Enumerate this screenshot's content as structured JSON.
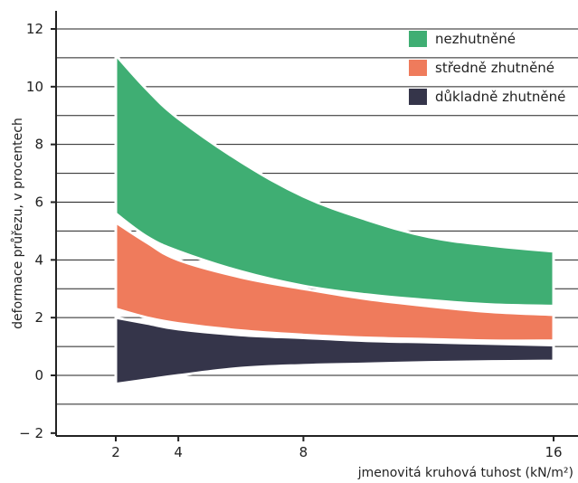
{
  "chart_data": {
    "type": "area",
    "xlabel": "jmenovitá kruhová tuhost (kN/m²)",
    "ylabel": "deformace průřezu, v procentech",
    "xlim": [
      0,
      17
    ],
    "ylim": [
      -2,
      12.5
    ],
    "x_ticks": [
      2,
      4,
      8,
      16
    ],
    "y_ticks": [
      -2,
      0,
      2,
      4,
      6,
      8,
      10,
      12
    ],
    "y_tick_labels": [
      "− 2",
      "0",
      "2",
      "4",
      "6",
      "8",
      "10",
      "12"
    ],
    "grid": "horizontal",
    "legend_position": "top-right",
    "series": [
      {
        "name": "nezhutněné",
        "color": "#3fae73",
        "x": [
          2,
          3,
          4,
          6,
          8,
          10,
          12,
          14,
          16
        ],
        "upper": [
          11.1,
          9.9,
          8.9,
          7.4,
          6.2,
          5.4,
          4.8,
          4.5,
          4.3
        ],
        "lower": [
          5.6,
          4.8,
          4.3,
          3.6,
          3.1,
          2.8,
          2.6,
          2.45,
          2.4
        ]
      },
      {
        "name": "středně zhutněné",
        "color": "#ef7b5c",
        "x": [
          2,
          3,
          4,
          6,
          8,
          10,
          12,
          14,
          16
        ],
        "upper": [
          5.3,
          4.6,
          4.0,
          3.4,
          3.0,
          2.65,
          2.4,
          2.2,
          2.1
        ],
        "lower": [
          2.3,
          2.0,
          1.8,
          1.55,
          1.4,
          1.3,
          1.25,
          1.2,
          1.2
        ]
      },
      {
        "name": "důkladně zhutněné",
        "color": "#35354a",
        "x": [
          2,
          3,
          4,
          6,
          8,
          10,
          12,
          14,
          16
        ],
        "upper": [
          2.0,
          1.8,
          1.6,
          1.4,
          1.3,
          1.2,
          1.15,
          1.1,
          1.05
        ],
        "lower": [
          -0.3,
          -0.15,
          0.0,
          0.25,
          0.35,
          0.4,
          0.45,
          0.48,
          0.5
        ]
      }
    ]
  }
}
